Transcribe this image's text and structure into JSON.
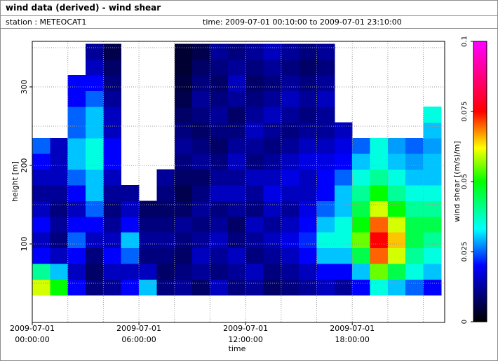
{
  "header": {
    "title": "wind data (derived) - wind shear",
    "station": "station : METEOCAT1",
    "time": "time: 2009-07-01 00:10:00 to 2009-07-01 23:10:00"
  },
  "chart_data": {
    "type": "heatmap",
    "xlabel": "time",
    "ylabel": "height [m]",
    "xlim": [
      0,
      23.2
    ],
    "ylim": [
      0,
      358
    ],
    "xticks": [
      {
        "value": 0,
        "label": "2009-07-01 00:00:00"
      },
      {
        "value": 6,
        "label": "2009-07-01 06:00:00"
      },
      {
        "value": 12,
        "label": "2009-07-01 12:00:00"
      },
      {
        "value": 18,
        "label": "2009-07-01 18:00:00"
      }
    ],
    "yticks": [
      100,
      200,
      300
    ],
    "xgrid": [
      2,
      4,
      6,
      8,
      10,
      12,
      14,
      16,
      18,
      20,
      22
    ],
    "ygrid": [
      50,
      100,
      150,
      200,
      250,
      300,
      350
    ],
    "x": [
      0.5,
      1.5,
      2.5,
      3.5,
      4.5,
      5.5,
      6.5,
      7.5,
      8.5,
      9.5,
      10.5,
      11.5,
      12.5,
      13.5,
      14.5,
      15.5,
      16.5,
      17.5,
      18.5,
      19.5,
      20.5,
      21.5,
      22.5
    ],
    "y": [
      45,
      65,
      85,
      105,
      125,
      145,
      165,
      185,
      205,
      225,
      245,
      265,
      285,
      305,
      325,
      345
    ],
    "z": [
      [
        0.06,
        0.05,
        0.02,
        0.01,
        0.012,
        0.02,
        0.03,
        0.01,
        0.012,
        0.008,
        0.015,
        0.01,
        0.012,
        0.008,
        0.01,
        0.012,
        0.015,
        0.012,
        0.02,
        0.035,
        0.03,
        0.025,
        0.02
      ],
      [
        0.04,
        0.03,
        0.015,
        0.008,
        0.015,
        0.015,
        0.015,
        0.008,
        0.01,
        0.012,
        0.01,
        0.012,
        0.015,
        0.01,
        0.012,
        0.015,
        0.02,
        0.02,
        0.03,
        0.055,
        0.045,
        0.035,
        0.03
      ],
      [
        0.02,
        0.015,
        0.02,
        0.01,
        0.02,
        0.025,
        0.01,
        0.01,
        0.008,
        0.015,
        0.012,
        0.015,
        0.01,
        0.012,
        0.015,
        0.02,
        0.03,
        0.03,
        0.045,
        0.07,
        0.06,
        0.04,
        0.035
      ],
      [
        0.015,
        0.01,
        0.025,
        0.015,
        0.015,
        0.03,
        0.012,
        0.012,
        0.01,
        0.012,
        0.015,
        0.01,
        0.012,
        0.015,
        0.018,
        0.022,
        0.035,
        0.035,
        0.055,
        0.075,
        0.065,
        0.045,
        0.04
      ],
      [
        0.02,
        0.012,
        0.02,
        0.02,
        0.012,
        0.02,
        0.01,
        0.01,
        0.012,
        0.01,
        0.012,
        0.008,
        0.015,
        0.012,
        0.015,
        0.02,
        0.03,
        0.035,
        0.05,
        0.07,
        0.06,
        0.045,
        0.045
      ],
      [
        0.015,
        0.01,
        0.015,
        0.025,
        0.01,
        0.015,
        0.008,
        0.008,
        0.008,
        0.012,
        0.01,
        0.012,
        0.01,
        0.015,
        0.012,
        0.018,
        0.025,
        0.03,
        0.045,
        0.06,
        0.05,
        0.04,
        0.04
      ],
      [
        0.012,
        0.012,
        0.02,
        0.03,
        0.012,
        0.012,
        null,
        0.01,
        0.006,
        0.01,
        0.015,
        0.015,
        0.012,
        0.018,
        0.015,
        0.015,
        0.02,
        0.03,
        0.04,
        0.05,
        0.04,
        0.035,
        0.035
      ],
      [
        0.015,
        0.015,
        0.025,
        0.03,
        0.015,
        null,
        null,
        0.012,
        0.008,
        0.008,
        0.012,
        0.012,
        0.015,
        0.015,
        0.018,
        0.015,
        0.02,
        0.025,
        0.035,
        0.04,
        0.035,
        0.03,
        0.03
      ],
      [
        0.02,
        0.015,
        0.03,
        0.035,
        0.02,
        null,
        null,
        null,
        0.01,
        0.012,
        0.01,
        0.015,
        0.01,
        0.012,
        0.015,
        0.018,
        0.018,
        0.02,
        0.03,
        0.035,
        0.03,
        0.028,
        0.03
      ],
      [
        0.025,
        0.015,
        0.03,
        0.035,
        0.02,
        null,
        null,
        null,
        0.012,
        0.01,
        0.008,
        0.012,
        0.012,
        0.01,
        0.012,
        0.015,
        0.015,
        0.018,
        0.025,
        0.035,
        0.028,
        0.025,
        0.028
      ],
      [
        null,
        null,
        0.025,
        0.03,
        0.015,
        null,
        null,
        null,
        0.01,
        0.008,
        0.01,
        0.01,
        0.015,
        0.012,
        0.01,
        0.012,
        0.012,
        0.015,
        null,
        null,
        null,
        null,
        0.03
      ],
      [
        null,
        null,
        0.025,
        0.03,
        0.015,
        null,
        null,
        null,
        0.008,
        0.01,
        0.012,
        0.008,
        0.012,
        0.015,
        0.012,
        0.01,
        0.012,
        null,
        null,
        null,
        null,
        null,
        0.035
      ],
      [
        null,
        null,
        0.02,
        0.025,
        0.012,
        null,
        null,
        null,
        0.006,
        0.012,
        0.01,
        0.012,
        0.01,
        0.012,
        0.015,
        0.012,
        0.015,
        null,
        null,
        null,
        null,
        null,
        null
      ],
      [
        null,
        null,
        0.02,
        0.02,
        0.01,
        null,
        null,
        null,
        0.005,
        0.01,
        0.008,
        0.015,
        0.008,
        0.01,
        0.012,
        0.01,
        0.012,
        null,
        null,
        null,
        null,
        null,
        null
      ],
      [
        null,
        null,
        null,
        0.015,
        0.008,
        null,
        null,
        null,
        0.004,
        0.008,
        0.01,
        0.012,
        0.01,
        0.012,
        0.01,
        0.008,
        0.01,
        null,
        null,
        null,
        null,
        null,
        null
      ],
      [
        null,
        null,
        null,
        0.012,
        0.006,
        null,
        null,
        null,
        0.004,
        0.006,
        0.012,
        0.01,
        0.012,
        0.015,
        0.012,
        0.01,
        0.012,
        null,
        null,
        null,
        null,
        null,
        null
      ]
    ],
    "colorbar": {
      "label": "wind shear [(m/s)/m]",
      "lim": [
        0,
        0.1
      ],
      "ticks": [
        0,
        0.025,
        0.05,
        0.075,
        0.1
      ],
      "colorscale": [
        [
          0,
          "#000000"
        ],
        [
          0.2,
          "#0000ff"
        ],
        [
          0.33,
          "#00ffff"
        ],
        [
          0.5,
          "#00ff00"
        ],
        [
          0.62,
          "#ffff00"
        ],
        [
          0.75,
          "#ff0000"
        ],
        [
          1,
          "#ff00ff"
        ]
      ]
    }
  }
}
